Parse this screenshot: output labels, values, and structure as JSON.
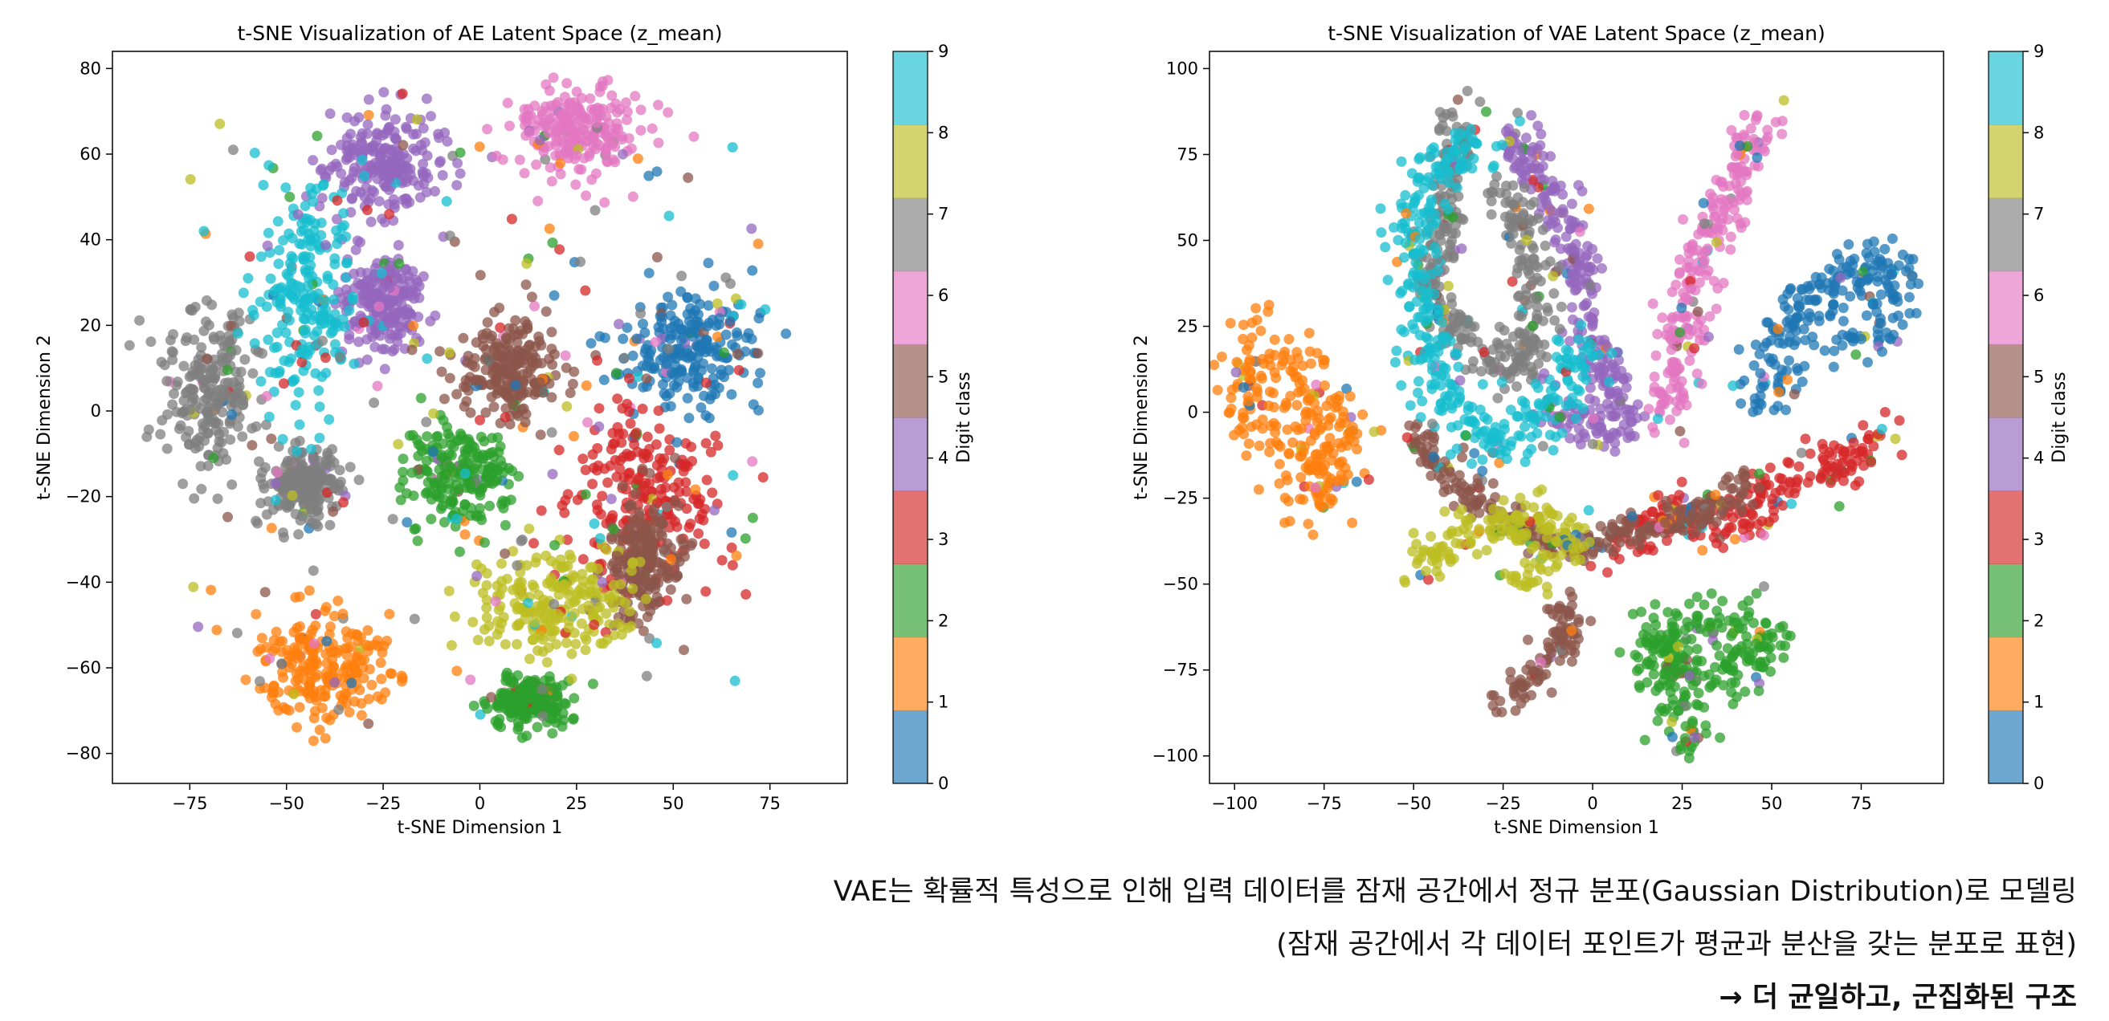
{
  "palette": [
    "#1f77b4",
    "#ff7f0e",
    "#2ca02c",
    "#d62728",
    "#9467bd",
    "#8c564b",
    "#e377c2",
    "#7f7f7f",
    "#bcbd22",
    "#17becf"
  ],
  "chart_data": [
    {
      "type": "scatter",
      "title": "t-SNE Visualization of AE Latent Space (z_mean)",
      "xlabel": "t-SNE Dimension 1",
      "ylabel": "t-SNE Dimension 2",
      "xlim": [
        -95,
        95
      ],
      "ylim": [
        -87,
        84
      ],
      "xticks": [
        -75,
        -50,
        -25,
        0,
        25,
        50,
        75
      ],
      "yticks": [
        -80,
        -60,
        -40,
        -20,
        0,
        20,
        40,
        60,
        80
      ],
      "grid": false,
      "colorbar": {
        "label": "Digit class",
        "ticks": [
          0,
          1,
          2,
          3,
          4,
          5,
          6,
          7,
          8,
          9
        ]
      },
      "clusters": [
        {
          "class": 0,
          "center": [
            55,
            15
          ],
          "spread": [
            13,
            9
          ]
        },
        {
          "class": 1,
          "center": [
            -40,
            -60
          ],
          "spread": [
            13,
            8
          ]
        },
        {
          "class": 2,
          "center": [
            -5,
            -15
          ],
          "spread": [
            9,
            8
          ]
        },
        {
          "class": 2,
          "center": [
            13,
            -68
          ],
          "spread": [
            7,
            4
          ]
        },
        {
          "class": 3,
          "center": [
            42,
            -20
          ],
          "spread": [
            13,
            14
          ]
        },
        {
          "class": 4,
          "center": [
            -25,
            58
          ],
          "spread": [
            10,
            8
          ]
        },
        {
          "class": 4,
          "center": [
            -25,
            25
          ],
          "spread": [
            7,
            7
          ]
        },
        {
          "class": 5,
          "center": [
            8,
            10
          ],
          "spread": [
            9,
            8
          ]
        },
        {
          "class": 5,
          "center": [
            42,
            -35
          ],
          "spread": [
            6,
            9
          ]
        },
        {
          "class": 6,
          "center": [
            25,
            65
          ],
          "spread": [
            11,
            7
          ]
        },
        {
          "class": 7,
          "center": [
            -70,
            5
          ],
          "spread": [
            8,
            13
          ]
        },
        {
          "class": 7,
          "center": [
            -45,
            -17
          ],
          "spread": [
            7,
            5
          ]
        },
        {
          "class": 8,
          "center": [
            20,
            -45
          ],
          "spread": [
            14,
            8
          ]
        },
        {
          "class": 9,
          "center": [
            -45,
            28
          ],
          "spread": [
            8,
            16
          ]
        }
      ]
    },
    {
      "type": "scatter",
      "title": "t-SNE Visualization of VAE Latent Space (z_mean)",
      "xlabel": "t-SNE Dimension 1",
      "ylabel": "t-SNE Dimension 2",
      "xlim": [
        -107,
        98
      ],
      "ylim": [
        -108,
        105
      ],
      "xticks": [
        -100,
        -75,
        -50,
        -25,
        0,
        25,
        50,
        75
      ],
      "yticks": [
        -100,
        -75,
        -50,
        -25,
        0,
        25,
        50,
        75,
        100
      ],
      "grid": false,
      "colorbar": {
        "label": "Digit class",
        "ticks": [
          0,
          1,
          2,
          3,
          4,
          5,
          6,
          7,
          8,
          9
        ]
      },
      "paths": [
        {
          "class": 0,
          "points": [
            [
              48,
              0
            ],
            [
              52,
              20
            ],
            [
              62,
              35
            ],
            [
              80,
              45
            ],
            [
              85,
              30
            ],
            [
              70,
              20
            ]
          ],
          "width": 5
        },
        {
          "class": 1,
          "points": [
            [
              -95,
              25
            ],
            [
              -95,
              5
            ],
            [
              -88,
              -5
            ],
            [
              -80,
              -15
            ],
            [
              -75,
              -25
            ],
            [
              -70,
              0
            ],
            [
              -85,
              15
            ]
          ],
          "width": 7
        },
        {
          "class": 2,
          "points": [
            [
              15,
              -65
            ],
            [
              25,
              -75
            ],
            [
              40,
              -75
            ],
            [
              50,
              -70
            ],
            [
              45,
              -62
            ],
            [
              30,
              -62
            ],
            [
              18,
              -68
            ],
            [
              25,
              -90
            ],
            [
              30,
              -98
            ]
          ],
          "width": 5
        },
        {
          "class": 3,
          "points": [
            [
              5,
              -40
            ],
            [
              20,
              -30
            ],
            [
              40,
              -35
            ],
            [
              50,
              -22
            ],
            [
              70,
              -15
            ],
            [
              80,
              -5
            ]
          ],
          "width": 5
        },
        {
          "class": 4,
          "points": [
            [
              -25,
              85
            ],
            [
              -15,
              70
            ],
            [
              -5,
              50
            ],
            [
              -2,
              25
            ],
            [
              5,
              10
            ],
            [
              10,
              -5
            ],
            [
              0,
              -5
            ],
            [
              -15,
              0
            ]
          ],
          "width": 4
        },
        {
          "class": 5,
          "points": [
            [
              -50,
              -5
            ],
            [
              -40,
              -20
            ],
            [
              -25,
              -30
            ],
            [
              -10,
              -40
            ],
            [
              10,
              -35
            ],
            [
              30,
              -30
            ],
            [
              45,
              -20
            ]
          ],
          "width": 3
        },
        {
          "class": 5,
          "points": [
            [
              -10,
              -55
            ],
            [
              -5,
              -65
            ],
            [
              -15,
              -75
            ],
            [
              -25,
              -85
            ]
          ],
          "width": 3
        },
        {
          "class": 6,
          "points": [
            [
              20,
              -5
            ],
            [
              25,
              20
            ],
            [
              30,
              45
            ],
            [
              38,
              65
            ],
            [
              48,
              85
            ]
          ],
          "width": 4
        },
        {
          "class": 7,
          "points": [
            [
              -35,
              90
            ],
            [
              -40,
              65
            ],
            [
              -45,
              40
            ],
            [
              -40,
              25
            ],
            [
              -20,
              10
            ],
            [
              -15,
              40
            ],
            [
              -25,
              65
            ]
          ],
          "width": 4
        },
        {
          "class": 8,
          "points": [
            [
              -50,
              -45
            ],
            [
              -35,
              -35
            ],
            [
              -20,
              -30
            ],
            [
              -5,
              -35
            ],
            [
              -20,
              -50
            ]
          ],
          "width": 4
        },
        {
          "class": 9,
          "points": [
            [
              -30,
              80
            ],
            [
              -45,
              70
            ],
            [
              -50,
              50
            ],
            [
              -45,
              20
            ],
            [
              -40,
              0
            ],
            [
              -25,
              -10
            ],
            [
              -10,
              5
            ],
            [
              0,
              20
            ]
          ],
          "width": 5
        }
      ]
    }
  ],
  "caption": {
    "line1": "VAE는 확률적 특성으로 인해 입력 데이터를 잠재 공간에서 정규 분포(Gaussian Distribution)로 모델링",
    "line2": "(잠재 공간에서 각 데이터 포인트가 평균과 분산을 갖는 분포로 표현)",
    "line3": "→ 더 균일하고, 군집화된 구조"
  }
}
